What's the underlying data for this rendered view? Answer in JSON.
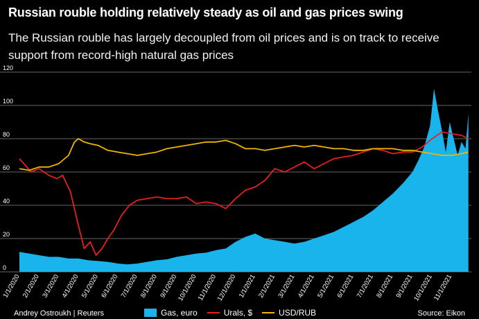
{
  "title": "Russian rouble holding relatively steady as oil and gas prices swing",
  "subtitle": "The Russian rouble has largely decoupled from oil prices and is on track to receive support from record-high natural gas prices",
  "credit": "Andrey Ostroukh | Reuters",
  "source": "Source: Eikon",
  "colors": {
    "gas": "#1ab4ec",
    "urals": "#e8201c",
    "usdrub": "#f2b500",
    "background": "#000000",
    "grid": "#8a8a8a"
  },
  "chart_data": {
    "type": "area+line",
    "ylim": [
      0,
      120
    ],
    "yticks": [
      0,
      20,
      40,
      60,
      80,
      100,
      120
    ],
    "xlim": [
      0,
      23
    ],
    "xtick_labels": [
      "1/1/2020",
      "2/1/2020",
      "3/1/2020",
      "4/1/2020",
      "5/1/2020",
      "6/1/2020",
      "7/1/2020",
      "8/1/2020",
      "9/1/2020",
      "10/1/2020",
      "11/1/2020",
      "12/1/2020",
      "1/1/2021",
      "2/1/2021",
      "3/1/2021",
      "4/1/2021",
      "5/1/2021",
      "6/1/2021",
      "7/1/2021",
      "8/1/2021",
      "9/1/2021",
      "10/1/2021",
      "11/1/2021"
    ],
    "xtick_positions": [
      0,
      1,
      2,
      3,
      4,
      5,
      6,
      7,
      8,
      9,
      10,
      11,
      12,
      13,
      14,
      15,
      16,
      17,
      18,
      19,
      20,
      21,
      22
    ],
    "legend": [
      "Gas, euro",
      "Urals, $",
      "USD/RUB"
    ],
    "series": [
      {
        "name": "Gas, euro",
        "kind": "area",
        "x": [
          0,
          0.5,
          1,
          1.5,
          2,
          2.5,
          3,
          3.5,
          4,
          4.5,
          5,
          5.5,
          6,
          6.5,
          7,
          7.5,
          8,
          8.5,
          9,
          9.5,
          10,
          10.5,
          11,
          11.5,
          12,
          12.5,
          13,
          13.5,
          14,
          14.5,
          15,
          15.5,
          16,
          16.5,
          17,
          17.5,
          18,
          18.5,
          19,
          19.5,
          20,
          20.3,
          20.6,
          20.9,
          21.1,
          21.3,
          21.5,
          21.7,
          21.9,
          22.1,
          22.3,
          22.5,
          22.7,
          22.85
        ],
        "values": [
          12,
          11,
          10,
          9,
          9,
          8,
          8,
          7,
          6.5,
          6,
          5,
          4.5,
          5,
          6,
          7,
          7.5,
          9,
          10,
          11,
          11.5,
          13,
          14,
          18,
          21,
          23,
          20,
          19,
          18,
          17,
          18,
          20,
          22,
          24,
          27,
          30,
          33,
          37,
          42,
          47,
          53,
          60,
          67,
          75,
          88,
          110,
          97,
          85,
          72,
          90,
          80,
          70,
          78,
          74,
          95
        ]
      },
      {
        "name": "Urals, $",
        "kind": "line",
        "x": [
          0,
          0.3,
          0.6,
          1,
          1.5,
          1.9,
          2.2,
          2.6,
          3,
          3.3,
          3.6,
          3.9,
          4.2,
          4.5,
          4.8,
          5.2,
          5.6,
          6,
          6.5,
          7,
          7.5,
          8,
          8.5,
          9,
          9.5,
          10,
          10.5,
          11,
          11.5,
          12,
          12.5,
          13,
          13.5,
          14,
          14.5,
          15,
          15.5,
          16,
          16.5,
          17,
          17.5,
          18,
          18.5,
          19,
          19.5,
          20,
          20.5,
          21,
          21.5,
          22,
          22.5,
          22.85
        ],
        "values": [
          68,
          64,
          60,
          62,
          58,
          56,
          58,
          48,
          28,
          14,
          18,
          10,
          14,
          20,
          25,
          34,
          40,
          43,
          44,
          45,
          44,
          44,
          45,
          41,
          42,
          41,
          38,
          44,
          49,
          51,
          55,
          62,
          60,
          63,
          66,
          62,
          65,
          68,
          69,
          70,
          72,
          74,
          73,
          71,
          72,
          72,
          75,
          80,
          84,
          83,
          82,
          80
        ]
      },
      {
        "name": "USD/RUB",
        "kind": "line",
        "x": [
          0,
          0.5,
          1,
          1.5,
          2,
          2.5,
          2.8,
          3,
          3.3,
          3.6,
          4,
          4.5,
          5,
          5.5,
          6,
          6.5,
          7,
          7.5,
          8,
          8.5,
          9,
          9.5,
          10,
          10.5,
          11,
          11.5,
          12,
          12.5,
          13,
          13.5,
          14,
          14.5,
          15,
          15.5,
          16,
          16.5,
          17,
          17.5,
          18,
          18.5,
          19,
          19.5,
          20,
          20.5,
          21,
          21.5,
          22,
          22.5,
          22.85
        ],
        "values": [
          62,
          61,
          63,
          63,
          65,
          70,
          78,
          80,
          78,
          77,
          76,
          73,
          72,
          71,
          70,
          71,
          72,
          74,
          75,
          76,
          77,
          78,
          78,
          79,
          77,
          74,
          74,
          73,
          74,
          75,
          76,
          75,
          76,
          75,
          74,
          74,
          73,
          73,
          74,
          74,
          74,
          73,
          73,
          72,
          71,
          70,
          70,
          71,
          72
        ]
      }
    ]
  }
}
